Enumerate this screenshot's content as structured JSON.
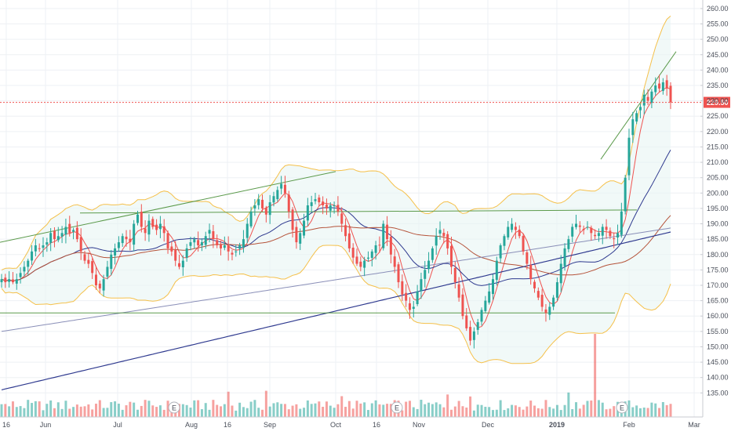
{
  "chart_data": {
    "type": "candlestick",
    "y_axis": {
      "ticks": [
        "135.00",
        "140.00",
        "145.00",
        "150.00",
        "155.00",
        "160.00",
        "165.00",
        "170.00",
        "175.00",
        "180.00",
        "185.00",
        "190.00",
        "195.00",
        "200.00",
        "205.00",
        "210.00",
        "215.00",
        "220.00",
        "225.00",
        "230.00",
        "235.00",
        "240.00",
        "245.00",
        "250.00",
        "255.00",
        "260.00"
      ],
      "ylim": [
        131,
        261
      ]
    },
    "x_axis": {
      "ticks": [
        {
          "label": "16",
          "bold": false
        },
        {
          "label": "Jun",
          "bold": false
        },
        {
          "label": "Jul",
          "bold": false
        },
        {
          "label": "Aug",
          "bold": false
        },
        {
          "label": "16",
          "bold": false
        },
        {
          "label": "Sep",
          "bold": false
        },
        {
          "label": "Oct",
          "bold": false
        },
        {
          "label": "16",
          "bold": false
        },
        {
          "label": "Nov",
          "bold": false
        },
        {
          "label": "Dec",
          "bold": false
        },
        {
          "label": "2019",
          "bold": true
        },
        {
          "label": "Feb",
          "bold": false
        },
        {
          "label": "Mar",
          "bold": false
        }
      ]
    },
    "last_price": {
      "label": "229.50",
      "value": 229.5
    },
    "earnings_markers": [
      "E",
      "E",
      "E"
    ],
    "colors": {
      "up": "#26a69a",
      "down": "#ef5350",
      "price_line": "#ef5350",
      "trendline": "#5b9a4b",
      "band": "#f5c04a",
      "ma_fast": "#ef5350",
      "ma_mid": "#2f3a8f",
      "ma_slow": "#b5533a",
      "ma_long": "#2f3a8f",
      "grid": "#eef0f4"
    },
    "series_close": [
      172,
      171,
      172,
      171,
      172,
      174,
      176,
      178,
      181,
      183,
      182,
      183,
      184,
      187,
      185,
      186,
      187,
      189,
      187,
      188,
      185,
      181,
      178,
      177,
      174,
      170,
      169,
      172,
      176,
      180,
      182,
      184,
      186,
      185,
      184,
      190,
      193,
      189,
      187,
      191,
      189,
      188,
      190,
      187,
      182,
      181,
      178,
      176,
      178,
      182,
      184,
      185,
      183,
      184,
      186,
      188,
      185,
      183,
      182,
      183,
      181,
      180,
      181,
      183,
      185,
      190,
      194,
      196,
      198,
      195,
      193,
      197,
      199,
      201,
      203,
      200,
      194,
      188,
      184,
      187,
      191,
      196,
      197,
      198,
      197,
      196,
      195,
      196,
      196,
      194,
      190,
      186,
      182,
      179,
      177,
      176,
      178,
      179,
      181,
      183,
      183,
      190,
      185,
      180,
      176,
      171,
      167,
      165,
      162,
      163,
      168,
      172,
      175,
      178,
      182,
      186,
      188,
      186,
      182,
      176,
      171,
      166,
      160,
      156,
      152,
      155,
      158,
      162,
      165,
      168,
      172,
      178,
      183,
      186,
      189,
      190,
      188,
      186,
      181,
      177,
      172,
      169,
      166,
      163,
      161,
      163,
      166,
      171,
      177,
      182,
      185,
      189,
      190,
      189,
      188,
      189,
      187,
      186,
      187,
      189,
      188,
      186,
      185,
      187,
      194,
      205,
      218,
      224,
      226,
      228,
      232,
      230,
      233,
      235,
      234,
      236,
      234,
      229.5
    ]
  }
}
